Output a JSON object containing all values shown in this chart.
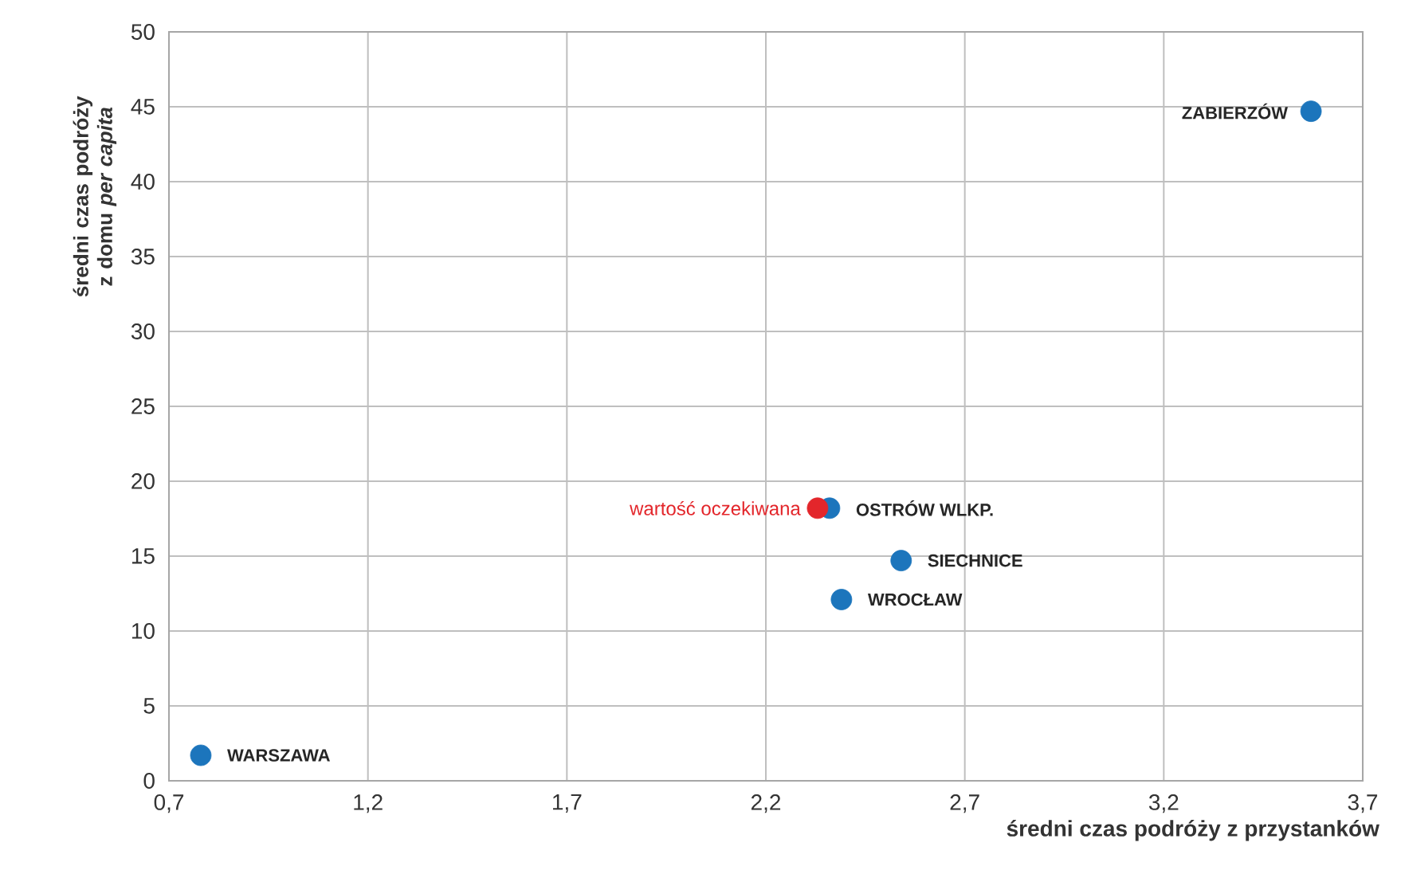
{
  "chart_data": {
    "type": "scatter",
    "xlabel": "średni czas podróży z przystanków",
    "ylabel": "średni czas podróży z domu *per capita*",
    "xlim": [
      0.7,
      3.7
    ],
    "xticks": [
      {
        "value": 0.7,
        "label": "0,7"
      },
      {
        "value": 1.2,
        "label": "1,2"
      },
      {
        "value": 1.7,
        "label": "1,7"
      },
      {
        "value": 2.2,
        "label": "2,2"
      },
      {
        "value": 2.7,
        "label": "2,7"
      },
      {
        "value": 3.2,
        "label": "3,2"
      },
      {
        "value": 3.7,
        "label": "3,7"
      }
    ],
    "ylim": [
      0,
      50
    ],
    "yticks": [
      0,
      5,
      10,
      15,
      20,
      25,
      30,
      35,
      40,
      45,
      50
    ],
    "grid": true,
    "marker": "circle",
    "series": [
      {
        "color": "#1c75bc",
        "x": [
          0.78,
          2.39,
          2.54,
          2.36,
          3.57
        ],
        "values": [
          1.7,
          12.1,
          14.7,
          18.2,
          44.7
        ]
      },
      {
        "name": "wartość oczekiwana",
        "color": "#e3262b",
        "x": [
          2.33
        ],
        "values": [
          18.2
        ]
      }
    ],
    "annotations": [
      {
        "text": "WARSZAWA",
        "x": 0.78,
        "y": 1.7
      },
      {
        "text": "WROCŁAW",
        "x": 2.39,
        "y": 12.1
      },
      {
        "text": "SIECHNICE",
        "x": 2.54,
        "y": 14.7
      },
      {
        "text": "OSTRÓW WLKP.",
        "x": 2.36,
        "y": 18.2
      },
      {
        "text": "ZABIERZÓW",
        "x": 3.57,
        "y": 44.7
      }
    ]
  }
}
